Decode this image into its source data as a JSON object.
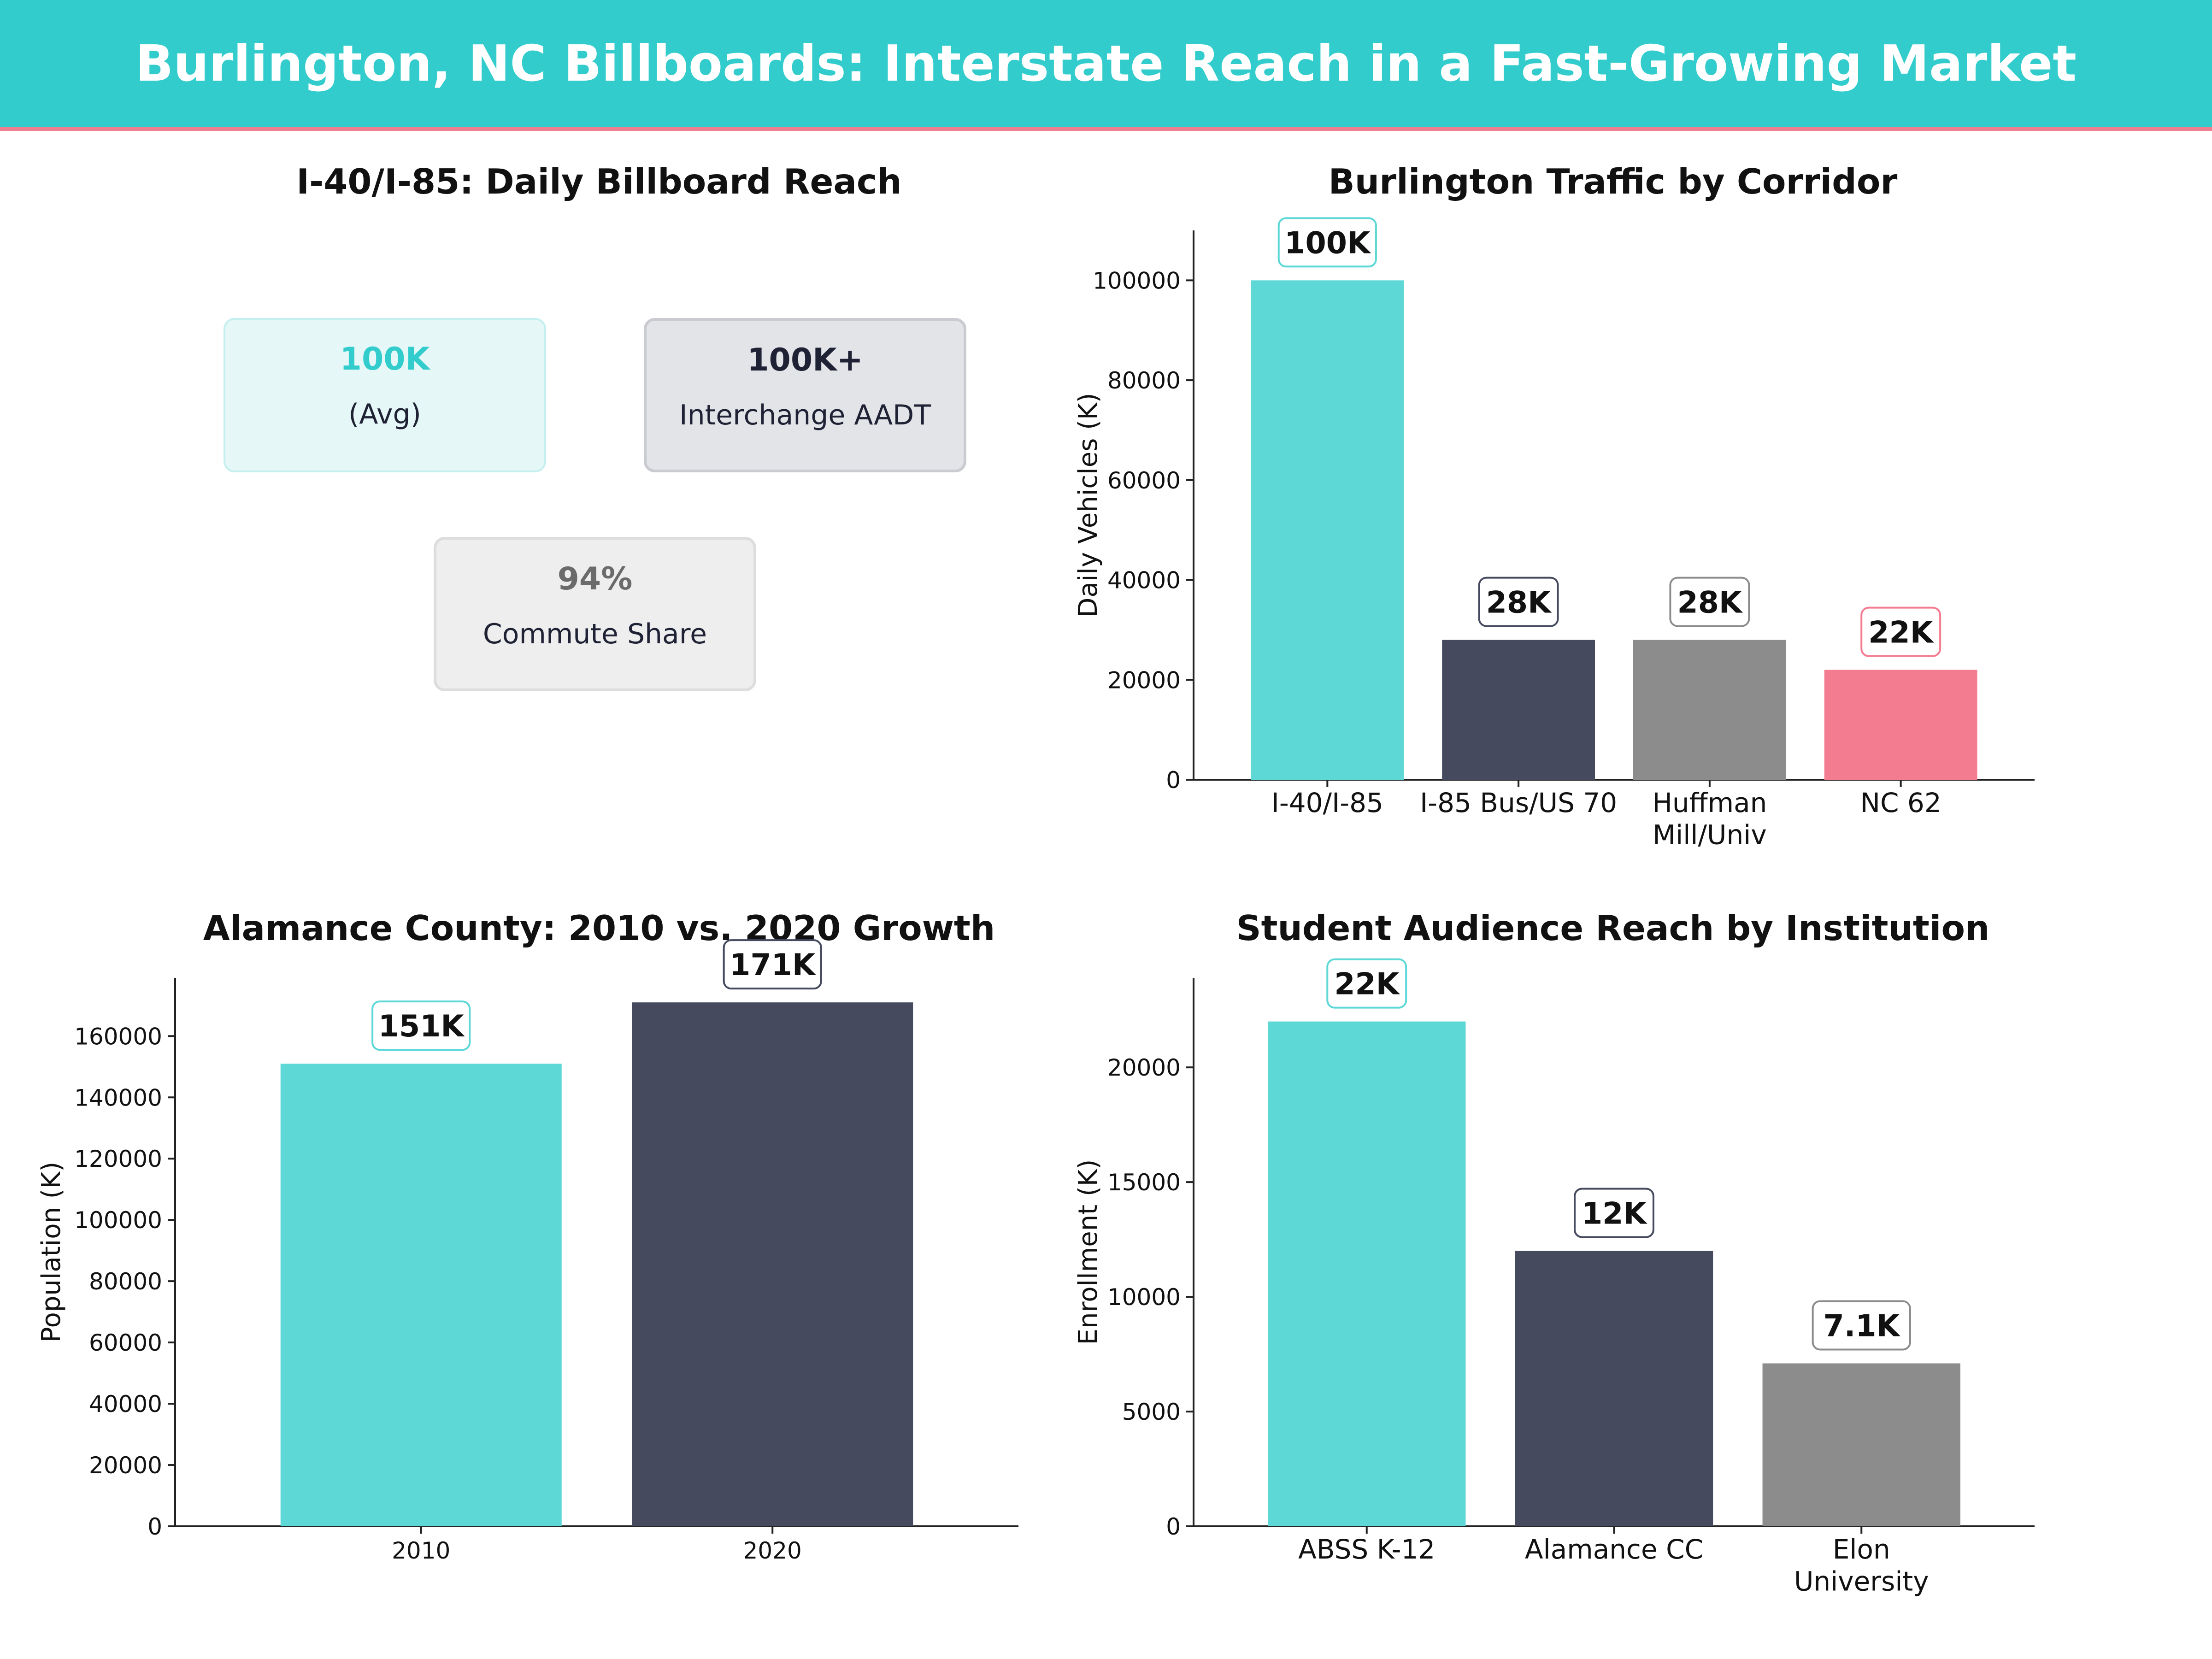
{
  "header": {
    "title": "Burlington, NC Billboards: Interstate Reach in a Fast-Growing Market"
  },
  "kpi_panel": {
    "title": "I-40/I-85: Daily Billboard Reach",
    "cards": [
      {
        "value": "100K",
        "label": "(Avg)",
        "color": "#33CCCC"
      },
      {
        "value": "100K+",
        "label": "Interchange AADT",
        "color": "#1F2235"
      },
      {
        "value": "94%",
        "label": "Commute Share",
        "color": "#6B6B6B"
      }
    ]
  },
  "chart_data": [
    {
      "type": "bar",
      "title": "Burlington Traffic by Corridor",
      "ylabel": "Daily Vehicles (K)",
      "xlabel": "",
      "categories": [
        "I-40/I-85",
        "I-85 Bus/US 70",
        "Huffman Mill/Univ",
        "NC 62"
      ],
      "values": [
        100000,
        28000,
        28000,
        22000
      ],
      "data_labels": [
        "100K",
        "28K",
        "28K",
        "22K"
      ],
      "ylim": [
        0,
        110000
      ],
      "yticks": [
        0,
        20000,
        40000,
        60000,
        80000,
        100000
      ],
      "colors": [
        "#5DD8D6",
        "#454A5F",
        "#8C8C8C",
        "#F47C90"
      ]
    },
    {
      "type": "bar",
      "title": "Alamance County: 2010 vs. 2020 Growth",
      "ylabel": "Population (K)",
      "xlabel": "",
      "categories": [
        "2010",
        "2020"
      ],
      "values": [
        151000,
        171000
      ],
      "data_labels": [
        "151K",
        "171K"
      ],
      "ylim": [
        0,
        179000
      ],
      "yticks": [
        0,
        20000,
        40000,
        60000,
        80000,
        100000,
        120000,
        140000,
        160000
      ],
      "colors": [
        "#5DD8D6",
        "#454A5F"
      ]
    },
    {
      "type": "bar",
      "title": "Student Audience Reach by Institution",
      "ylabel": "Enrollment (K)",
      "xlabel": "",
      "categories": [
        "ABSS K-12",
        "Alamance CC",
        "Elon University"
      ],
      "values": [
        22000,
        12000,
        7100
      ],
      "data_labels": [
        "22K",
        "12K",
        "7.1K"
      ],
      "ylim": [
        0,
        23900
      ],
      "yticks": [
        0,
        5000,
        10000,
        15000,
        20000
      ],
      "colors": [
        "#5DD8D6",
        "#454A5F",
        "#8C8C8C"
      ]
    }
  ]
}
